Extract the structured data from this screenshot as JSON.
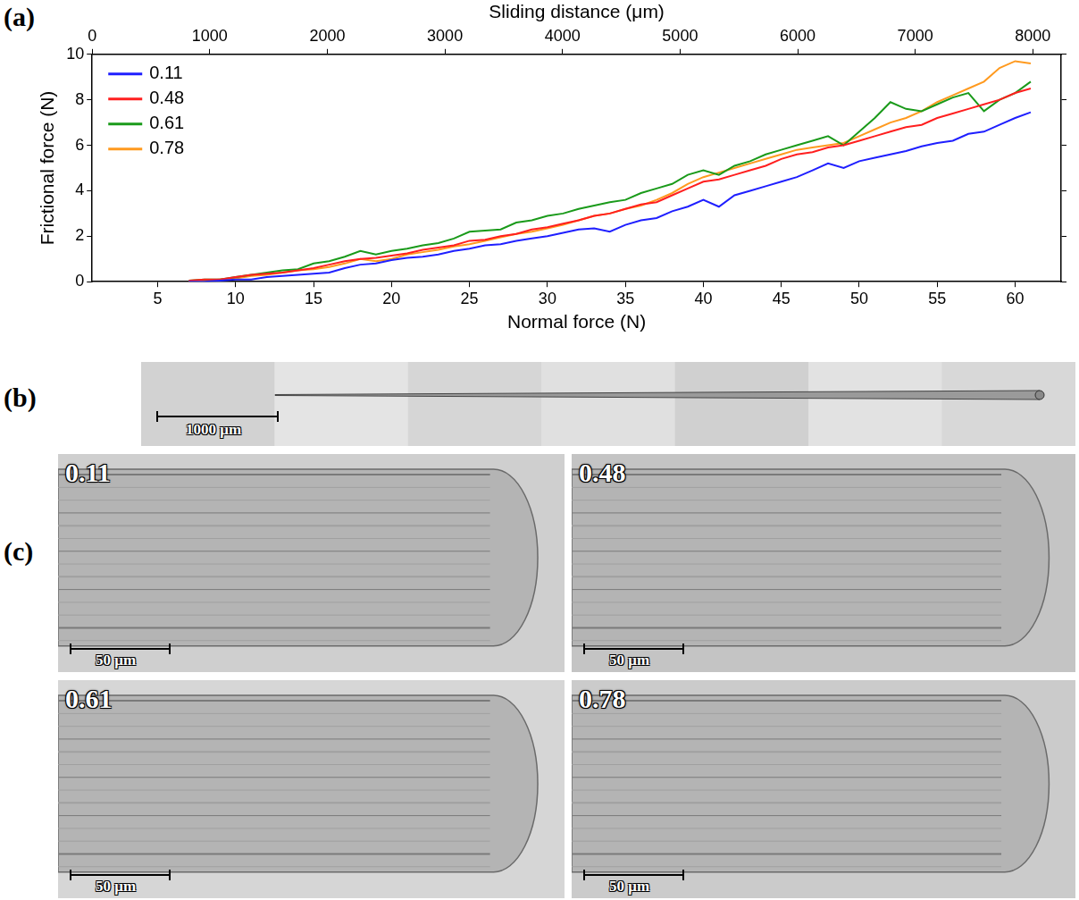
{
  "chart_data": {
    "type": "line",
    "panel_label": "(a)",
    "x_label": "Normal force (N)",
    "x2_label": "Sliding distance (μm)",
    "y_label": "Frictional force (N)",
    "xlim": [
      0.8,
      62.95
    ],
    "xticks": [
      5,
      10,
      15,
      20,
      25,
      30,
      35,
      40,
      45,
      50,
      55,
      60
    ],
    "x2lim": [
      0,
      8241
    ],
    "x2ticks": [
      0,
      1000,
      2000,
      3000,
      4000,
      5000,
      6000,
      7000,
      8000
    ],
    "ylim": [
      0,
      10
    ],
    "yticks": [
      0,
      2,
      4,
      6,
      8,
      10
    ],
    "grid": false,
    "legend": "top-left",
    "x": [
      7,
      8,
      9,
      10,
      11,
      12,
      13,
      14,
      15,
      16,
      17,
      18,
      19,
      20,
      21,
      22,
      23,
      24,
      25,
      26,
      27,
      28,
      29,
      30,
      31,
      32,
      33,
      34,
      35,
      36,
      37,
      38,
      39,
      40,
      41,
      42,
      43,
      44,
      45,
      46,
      47,
      48,
      49,
      50,
      51,
      52,
      53,
      54,
      55,
      56,
      57,
      58,
      59,
      60,
      61
    ],
    "series": [
      {
        "name": "0.11",
        "color": "#1f1fff",
        "values": [
          0.0,
          0.0,
          0.05,
          0.1,
          0.1,
          0.2,
          0.25,
          0.3,
          0.35,
          0.4,
          0.6,
          0.75,
          0.8,
          0.95,
          1.05,
          1.1,
          1.2,
          1.35,
          1.45,
          1.6,
          1.65,
          1.8,
          1.9,
          2.0,
          2.15,
          2.3,
          2.35,
          2.2,
          2.5,
          2.7,
          2.8,
          3.1,
          3.3,
          3.6,
          3.3,
          3.8,
          4.0,
          4.2,
          4.4,
          4.6,
          4.9,
          5.2,
          5.0,
          5.3,
          5.45,
          5.6,
          5.75,
          5.95,
          6.1,
          6.2,
          6.5,
          6.6,
          6.9,
          7.2,
          7.45
        ]
      },
      {
        "name": "0.48",
        "color": "#ff1f1f",
        "values": [
          0.05,
          0.1,
          0.1,
          0.2,
          0.3,
          0.35,
          0.4,
          0.5,
          0.6,
          0.75,
          0.9,
          1.0,
          1.05,
          1.15,
          1.25,
          1.4,
          1.5,
          1.6,
          1.8,
          1.85,
          2.0,
          2.1,
          2.3,
          2.4,
          2.55,
          2.7,
          2.9,
          3.0,
          3.2,
          3.4,
          3.5,
          3.8,
          4.1,
          4.4,
          4.5,
          4.7,
          4.9,
          5.1,
          5.4,
          5.6,
          5.7,
          5.9,
          6.0,
          6.2,
          6.4,
          6.6,
          6.8,
          6.9,
          7.2,
          7.4,
          7.6,
          7.8,
          8.0,
          8.3,
          8.5
        ]
      },
      {
        "name": "0.61",
        "color": "#1a9a1a",
        "values": [
          0.05,
          0.1,
          0.1,
          0.2,
          0.3,
          0.4,
          0.5,
          0.55,
          0.8,
          0.9,
          1.1,
          1.35,
          1.2,
          1.35,
          1.45,
          1.6,
          1.7,
          1.9,
          2.2,
          2.25,
          2.3,
          2.6,
          2.7,
          2.9,
          3.0,
          3.2,
          3.35,
          3.5,
          3.6,
          3.9,
          4.1,
          4.3,
          4.7,
          4.9,
          4.7,
          5.1,
          5.3,
          5.6,
          5.8,
          6.0,
          6.2,
          6.4,
          6.0,
          6.6,
          7.2,
          7.9,
          7.6,
          7.5,
          7.8,
          8.1,
          8.3,
          7.5,
          8.0,
          8.3,
          8.8
        ]
      },
      {
        "name": "0.78",
        "color": "#ff9a1f",
        "values": [
          0.0,
          0.05,
          0.1,
          0.15,
          0.25,
          0.3,
          0.4,
          0.5,
          0.55,
          0.65,
          0.8,
          1.0,
          0.9,
          1.0,
          1.2,
          1.3,
          1.4,
          1.55,
          1.65,
          1.8,
          1.95,
          2.1,
          2.2,
          2.35,
          2.5,
          2.7,
          2.9,
          3.0,
          3.2,
          3.35,
          3.6,
          3.9,
          4.3,
          4.6,
          4.8,
          5.0,
          5.2,
          5.4,
          5.6,
          5.8,
          5.9,
          6.0,
          6.1,
          6.4,
          6.7,
          7.0,
          7.2,
          7.5,
          7.9,
          8.2,
          8.5,
          8.8,
          9.4,
          9.7,
          9.6
        ]
      }
    ]
  },
  "figure": {
    "panels": [
      {
        "label": "(b)",
        "scale_bar": "1000 μm"
      },
      {
        "label": "(c)",
        "images": [
          {
            "label": "0.11",
            "scale_bar": "50 μm"
          },
          {
            "label": "0.48",
            "scale_bar": "50 μm"
          },
          {
            "label": "0.61",
            "scale_bar": "50 μm"
          },
          {
            "label": "0.78",
            "scale_bar": "50 μm"
          }
        ]
      }
    ]
  }
}
